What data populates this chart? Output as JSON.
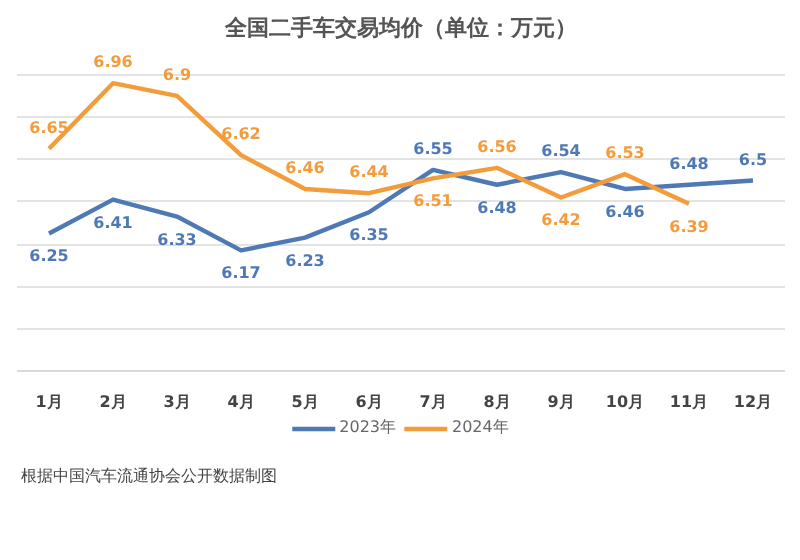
{
  "chart_data": {
    "type": "line",
    "title": "全国二手车交易均价（单位：万元）",
    "categories": [
      "1月",
      "2月",
      "3月",
      "4月",
      "5月",
      "6月",
      "7月",
      "8月",
      "9月",
      "10月",
      "11月",
      "12月"
    ],
    "series": [
      {
        "name": "2023年",
        "color": "#4f79b4",
        "values": [
          6.25,
          6.41,
          6.33,
          6.17,
          6.23,
          6.35,
          6.55,
          6.48,
          6.54,
          6.46,
          6.48,
          6.5
        ]
      },
      {
        "name": "2024年",
        "color": "#f39c3c",
        "values": [
          6.65,
          6.96,
          6.9,
          6.62,
          6.46,
          6.44,
          6.51,
          6.56,
          6.42,
          6.53,
          6.39,
          null
        ]
      }
    ],
    "yticks": [
      {
        "value": 5.6,
        "label": null
      },
      {
        "value": 5.8,
        "label": null
      },
      {
        "value": 6.0,
        "label": null
      },
      {
        "value": 6.2,
        "label": null
      },
      {
        "value": 6.4,
        "label": null
      },
      {
        "value": 6.6,
        "label": null
      },
      {
        "value": 6.8,
        "label": null
      },
      {
        "value": 7.0,
        "label": null
      }
    ],
    "tick_labels": "x",
    "grid": "y",
    "data_labels": true,
    "legend": "bottom",
    "marker": "none",
    "line_style": "solid",
    "annotations": [
      "根据中国汽车流通协会公开数据制图"
    ]
  }
}
